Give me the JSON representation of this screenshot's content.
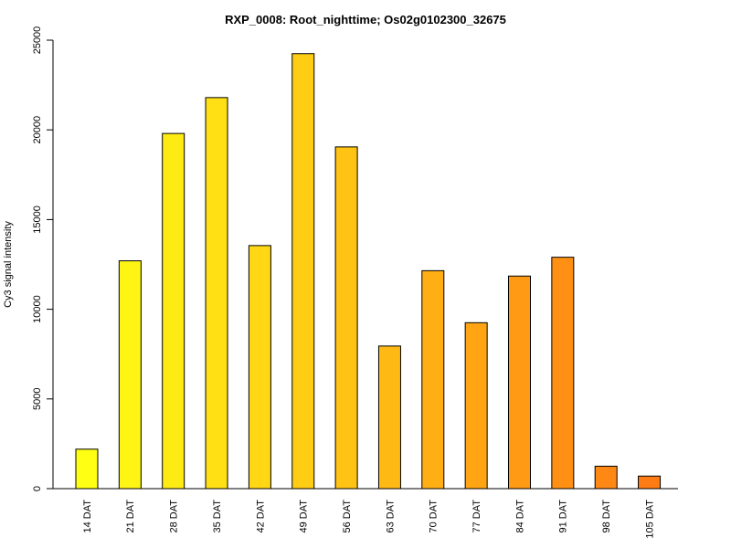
{
  "chart_data": {
    "type": "bar",
    "title": "RXP_0008: Root_nighttime; Os02g0102300_32675",
    "xlabel": "",
    "ylabel": "Cy3 signal intensity",
    "ylim": [
      0,
      25000
    ],
    "yticks": [
      0,
      5000,
      10000,
      15000,
      20000,
      25000
    ],
    "categories": [
      "14 DAT",
      "21 DAT",
      "28 DAT",
      "35 DAT",
      "42 DAT",
      "49 DAT",
      "56 DAT",
      "63 DAT",
      "70 DAT",
      "77 DAT",
      "84 DAT",
      "91 DAT",
      "98 DAT",
      "105 DAT"
    ],
    "values": [
      2200,
      12700,
      19800,
      21800,
      13550,
      24250,
      19050,
      7950,
      12150,
      9250,
      11850,
      12900,
      1250,
      700
    ],
    "colors": [
      "#FFFF14",
      "#FFF514",
      "#FFEB14",
      "#FFE014",
      "#FFD714",
      "#FFCD14",
      "#FFC314",
      "#FFB914",
      "#FFAF14",
      "#FFA514",
      "#FF9A14",
      "#FF9014",
      "#FF8714",
      "#FF7C14"
    ],
    "grid": false,
    "legend": "none"
  }
}
